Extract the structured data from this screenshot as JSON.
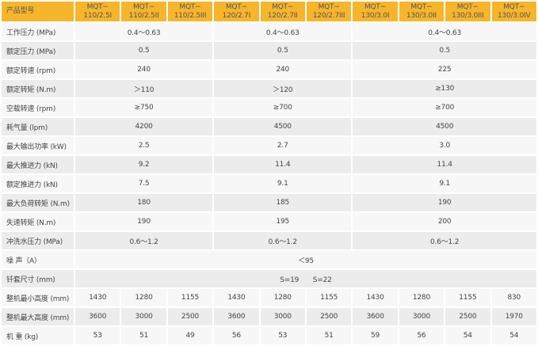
{
  "header": {
    "label": "产品型号",
    "models": [
      [
        "MQT−",
        "110/2.5I"
      ],
      [
        "MQT−",
        "110/2.5II"
      ],
      [
        "MQT−",
        "110/2.5III"
      ],
      [
        "MQT−",
        "120/2.7I"
      ],
      [
        "MQT−",
        "120/2.7II"
      ],
      [
        "MQT−",
        "120/2.7III"
      ],
      [
        "MQT−",
        "130/3.0I"
      ],
      [
        "MQT−",
        "130/3.0II"
      ],
      [
        "MQT−",
        "130/3.0III"
      ],
      [
        "MQT−",
        "130/3.0IV"
      ]
    ]
  },
  "grouped_rows": [
    {
      "label": "工作压力 (MPa)",
      "values": [
        "0.4～0.63",
        "0.4～0.63",
        "0.4～0.63"
      ]
    },
    {
      "label": "额定压力 (MPa)",
      "values": [
        "0.5",
        "0.5",
        "0.5"
      ]
    },
    {
      "label": "额定转速 (rpm)",
      "values": [
        "240",
        "240",
        "225"
      ]
    },
    {
      "label": "额定转矩 (N.m)",
      "values": [
        "＞110",
        "＞120",
        "≥130"
      ]
    },
    {
      "label": "空载转速 (rpm)",
      "values": [
        "≥750",
        "≥700",
        "≥700"
      ]
    },
    {
      "label": "耗气量 (lpm)",
      "values": [
        "4200",
        "4500",
        "4500"
      ]
    },
    {
      "label": "最大输出功率 (kW)",
      "values": [
        "2.5",
        "2.7",
        "3.0"
      ]
    },
    {
      "label": "最大推进力 (kN)",
      "values": [
        "9.2",
        "11.4",
        "11.4"
      ]
    },
    {
      "label": "额定推进力 (kN)",
      "values": [
        "7.5",
        "9.1",
        "9.1"
      ]
    },
    {
      "label": "最大负荷转矩 (N.m)",
      "values": [
        "180",
        "185",
        "190"
      ]
    },
    {
      "label": "失速转矩 (N.m)",
      "values": [
        "190",
        "195",
        "200"
      ]
    },
    {
      "label": "冲洗水压力 (MPa)",
      "values": [
        "0.6～1.2",
        "0.6～1.2",
        "0.6～1.2"
      ]
    }
  ],
  "span_rows": [
    {
      "label": "噪 声（A）",
      "value": "＜95"
    },
    {
      "label": "钎套尺寸 (mm)",
      "value": "S=19　　S=22"
    }
  ],
  "full_rows": [
    {
      "label": "整机最小高度 (mm)",
      "values": [
        "1430",
        "1280",
        "1155",
        "1430",
        "1280",
        "1155",
        "1430",
        "1280",
        "1155",
        "830"
      ]
    },
    {
      "label": "整机最大高度 (mm)",
      "values": [
        "3600",
        "3000",
        "2500",
        "3600",
        "3000",
        "2500",
        "3600",
        "3000",
        "2500",
        "1970"
      ]
    },
    {
      "label": "机  重 (kg)",
      "values": [
        "53",
        "51",
        "49",
        "56",
        "53",
        "51",
        "59",
        "56",
        "54",
        "54"
      ]
    }
  ],
  "colors": {
    "header_bg": "#f6b52b",
    "row_light": "#f7f7f7",
    "row_dark": "#ececec"
  }
}
